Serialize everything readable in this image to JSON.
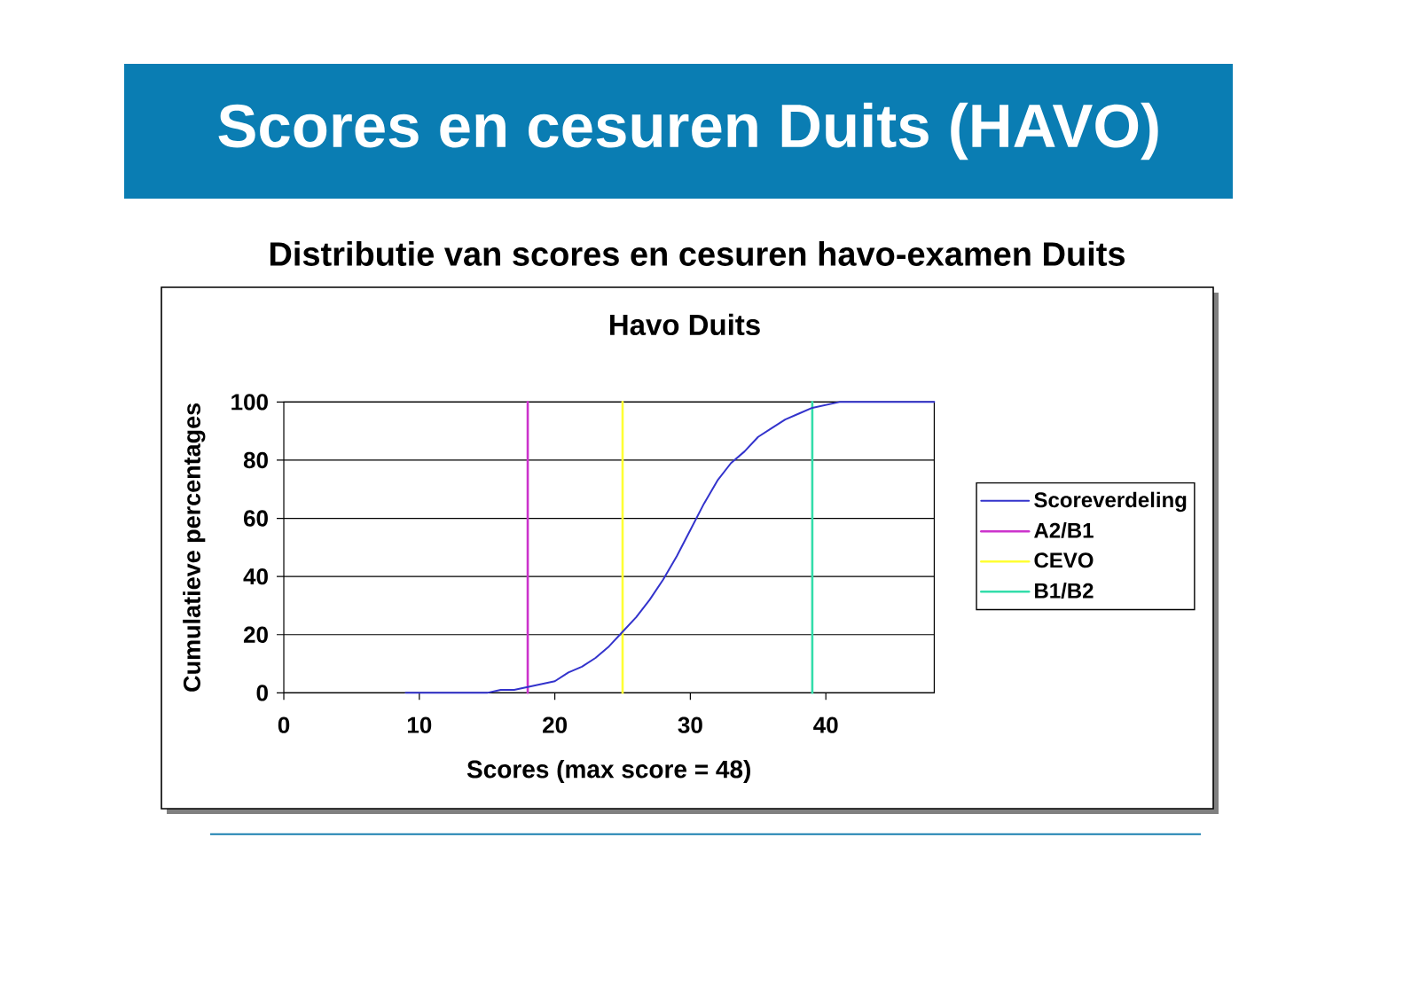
{
  "chart_data": {
    "type": "line",
    "title": "Scores en cesuren Duits (HAVO)",
    "subtitle": "Distributie van scores en cesuren havo-examen Duits",
    "annotations": [
      "Havo Duits"
    ],
    "xlabel": "Scores (max score = 48)",
    "ylabel": "Cumulatieve percentages",
    "series": [
      {
        "name": "Scoreverdeling",
        "color": "#3333cc",
        "x": [
          9,
          10,
          11,
          12,
          13,
          14,
          15,
          16,
          17,
          18,
          19,
          20,
          21,
          22,
          23,
          24,
          25,
          26,
          27,
          28,
          29,
          30,
          31,
          32,
          33,
          34,
          35,
          36,
          37,
          38,
          39,
          40,
          41,
          42,
          43,
          44,
          45,
          46,
          47,
          48
        ],
        "values": [
          0,
          0,
          0,
          0,
          0,
          0,
          0,
          1,
          1,
          2,
          3,
          4,
          7,
          9,
          12,
          16,
          21,
          26,
          32,
          39,
          47,
          56,
          65,
          73,
          79,
          83,
          88,
          91,
          94,
          96,
          98,
          99,
          100,
          100,
          100,
          100,
          100,
          100,
          100,
          100
        ]
      },
      {
        "name": "A2/B1",
        "color": "#cc33cc",
        "x": [
          18,
          18
        ],
        "values": [
          0,
          100
        ]
      },
      {
        "name": "CEVO",
        "color": "#ffff33",
        "x": [
          25,
          25
        ],
        "values": [
          0,
          100
        ]
      },
      {
        "name": "B1/B2",
        "color": "#33ddaa",
        "x": [
          39,
          39
        ],
        "values": [
          0,
          100
        ]
      }
    ],
    "xlim": [
      0,
      48
    ],
    "xticks": [
      0,
      10,
      20,
      30,
      40
    ],
    "ylim": [
      0,
      100
    ],
    "yticks": [
      0,
      20,
      40,
      60,
      80,
      100
    ],
    "grid": "y",
    "legend": "right"
  }
}
